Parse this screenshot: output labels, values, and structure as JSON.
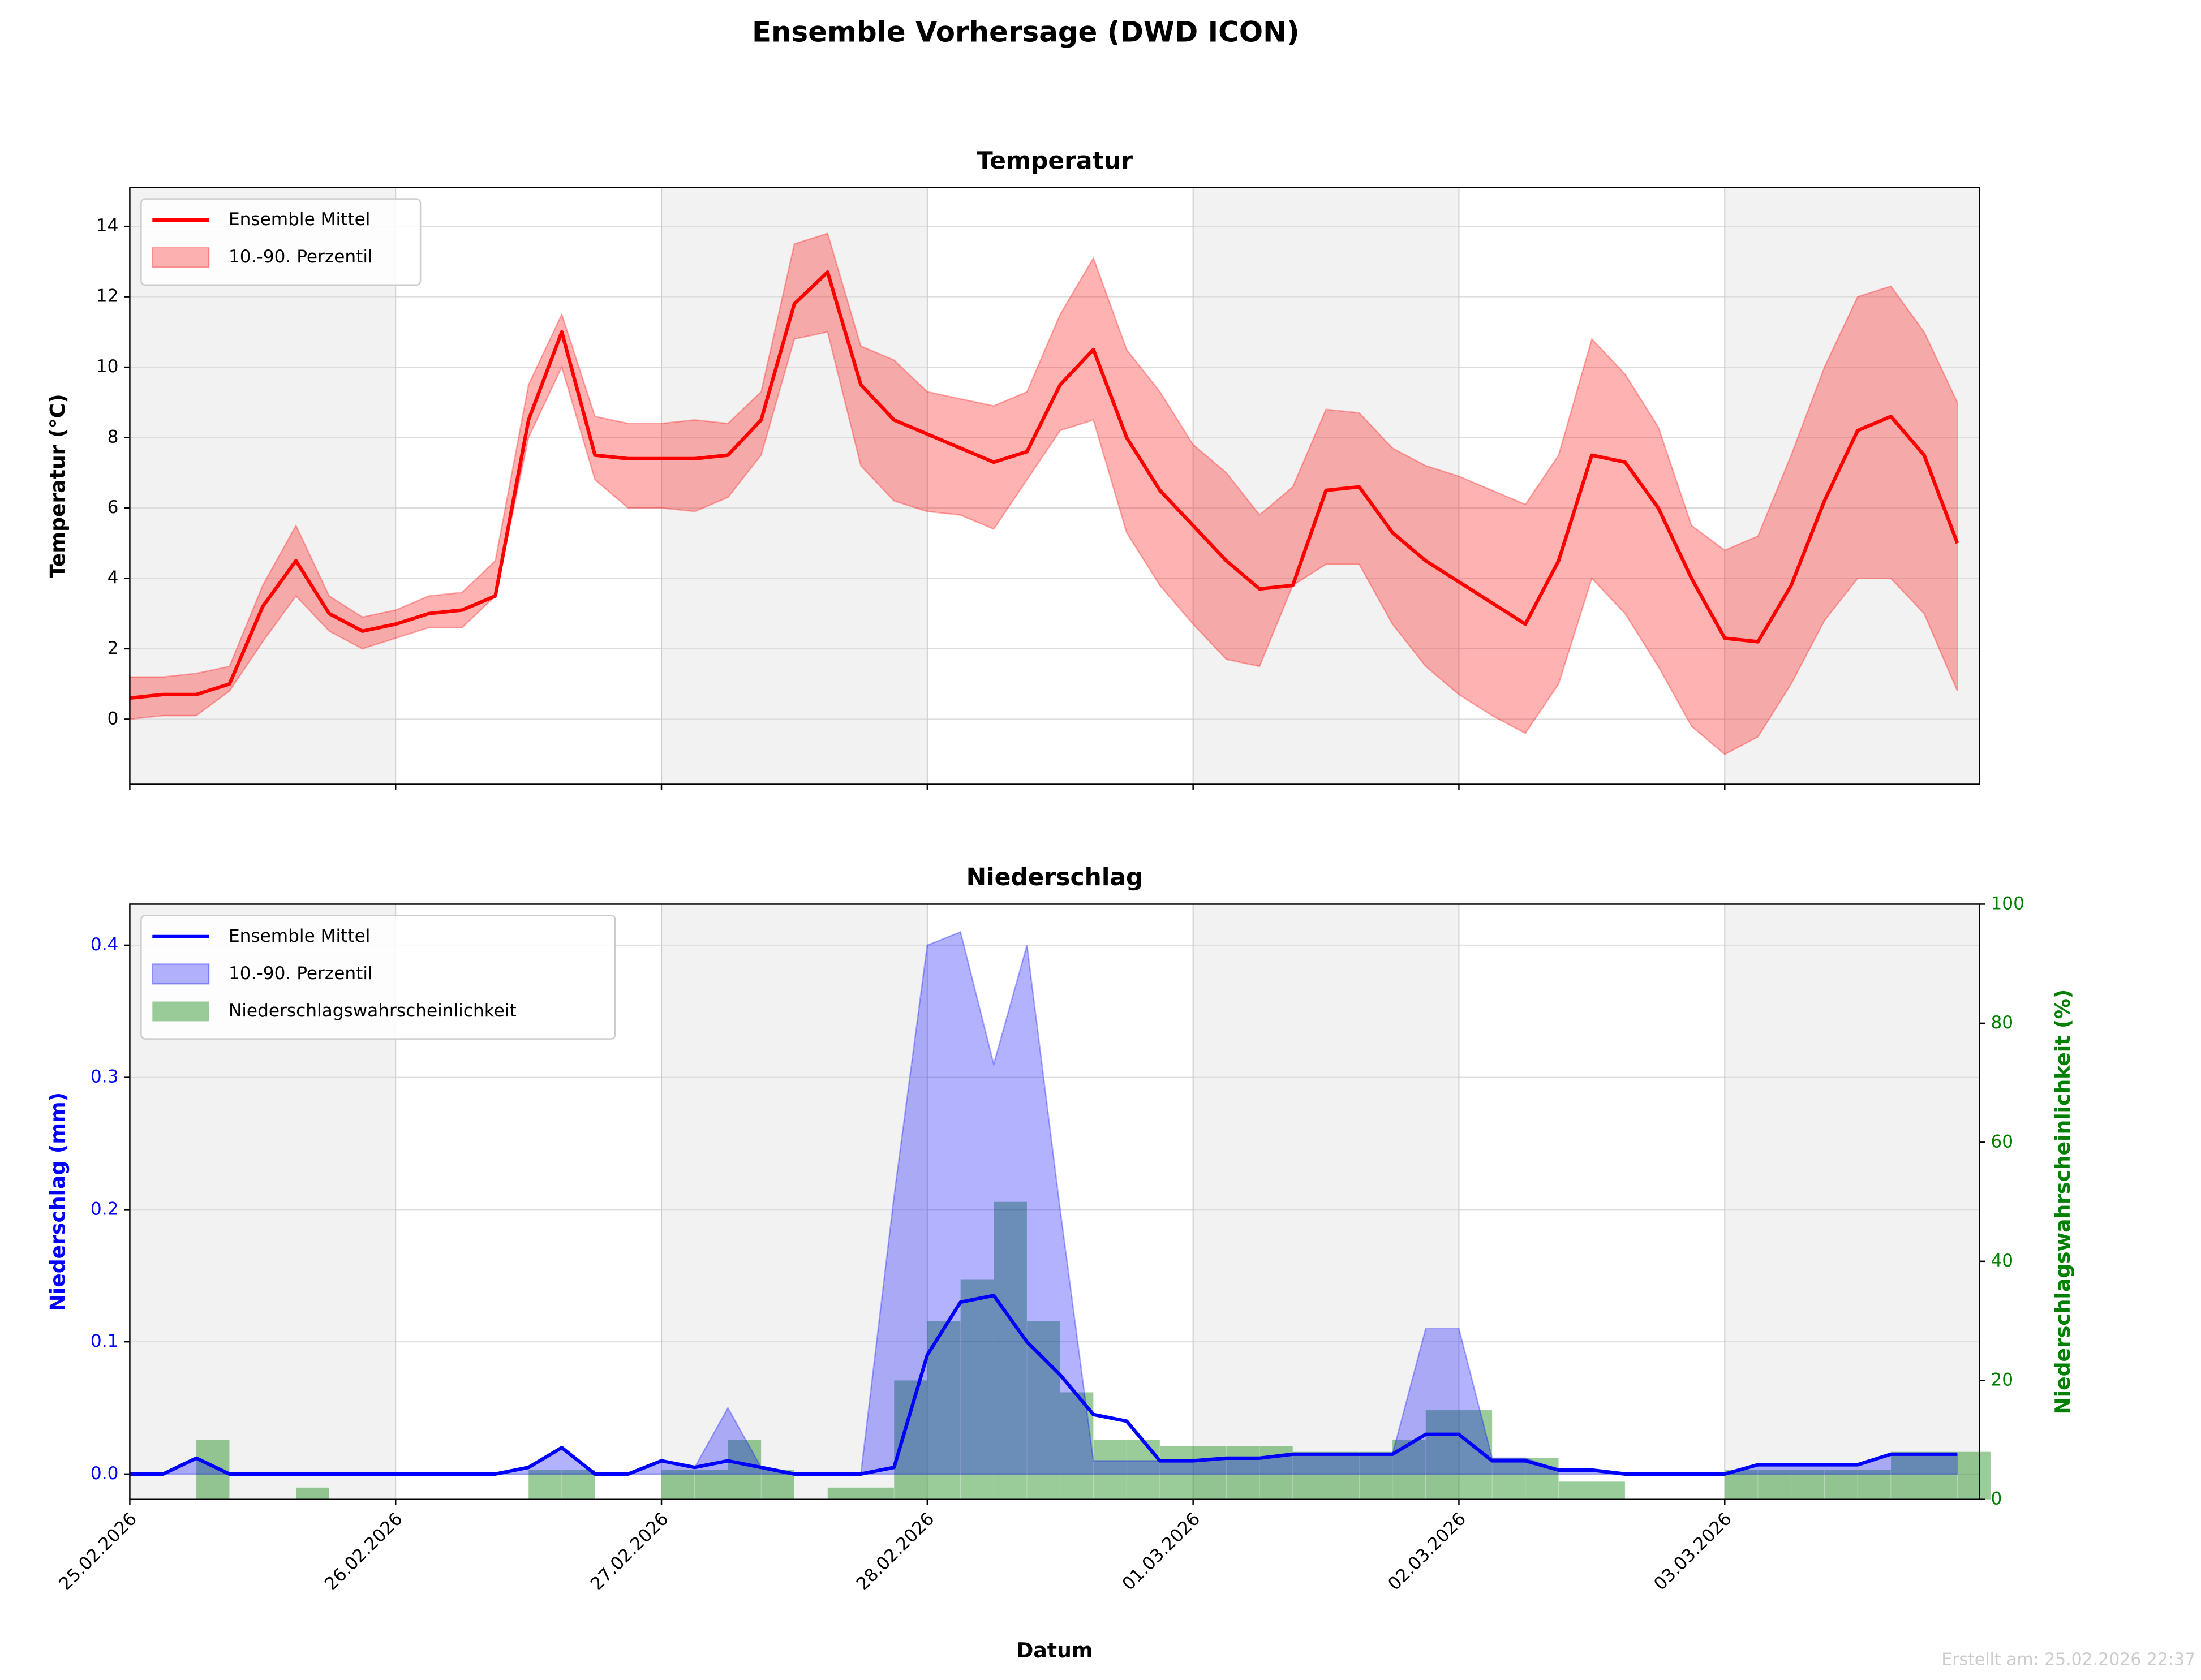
{
  "title": "Ensemble Vorhersage (DWD ICON)",
  "footer": "Erstellt am: 25.02.2026 22:37",
  "chart_data": [
    {
      "type": "line",
      "title": "Temperatur",
      "ylabel": "Temperatur (°C)",
      "x": [
        0,
        3,
        6,
        9,
        12,
        15,
        18,
        21,
        24,
        27,
        30,
        33,
        36,
        39,
        42,
        45,
        48,
        51,
        54,
        57,
        60,
        63,
        66,
        69,
        72,
        75,
        78,
        81,
        84,
        87,
        90,
        93,
        96,
        99,
        102,
        105,
        108,
        111,
        114,
        117,
        120,
        123,
        126,
        129,
        132,
        135,
        138,
        141,
        144,
        147,
        150,
        153,
        156,
        159,
        162,
        165
      ],
      "xlim": [
        0,
        167
      ],
      "xticks": [
        0,
        24,
        48,
        72,
        96,
        120,
        144
      ],
      "ylim": [
        -1.85,
        15.1
      ],
      "yticks": [
        0,
        2,
        4,
        6,
        8,
        10,
        12,
        14
      ],
      "grid": true,
      "legend": "upper left",
      "series": [
        {
          "name": "Ensemble Mittel",
          "color": "#ff0000",
          "values": [
            0.6,
            0.7,
            0.7,
            1.0,
            3.2,
            4.5,
            3.0,
            2.5,
            2.7,
            3.0,
            3.1,
            3.5,
            8.5,
            11.0,
            7.5,
            7.4,
            7.4,
            7.4,
            7.5,
            8.5,
            11.8,
            12.7,
            9.5,
            8.5,
            8.1,
            7.7,
            7.3,
            7.6,
            9.5,
            10.5,
            8.0,
            6.5,
            5.5,
            4.5,
            3.7,
            3.8,
            6.5,
            6.6,
            5.3,
            4.5,
            3.9,
            3.3,
            2.7,
            4.5,
            7.5,
            7.3,
            6.0,
            4.0,
            2.3,
            2.2,
            3.8,
            6.2,
            8.2,
            8.6,
            7.5,
            5.0
          ]
        },
        {
          "name": "10.-90. Perzentil",
          "color": "#ff0000",
          "low": [
            0.0,
            0.1,
            0.1,
            0.8,
            2.2,
            3.5,
            2.5,
            2.0,
            2.3,
            2.6,
            2.6,
            3.5,
            8.0,
            10.0,
            6.8,
            6.0,
            6.0,
            5.9,
            6.3,
            7.5,
            10.8,
            11.0,
            7.2,
            6.2,
            5.9,
            5.8,
            5.4,
            6.8,
            8.2,
            8.5,
            5.3,
            3.8,
            2.7,
            1.7,
            1.5,
            3.8,
            4.4,
            4.4,
            2.7,
            1.5,
            0.7,
            0.1,
            -0.4,
            1.0,
            4.0,
            3.0,
            1.5,
            -0.2,
            -1.0,
            -0.5,
            1.0,
            2.8,
            4.0,
            4.0,
            3.0,
            0.8
          ],
          "high": [
            1.2,
            1.2,
            1.3,
            1.5,
            3.8,
            5.5,
            3.5,
            2.9,
            3.1,
            3.5,
            3.6,
            4.5,
            9.5,
            11.5,
            8.6,
            8.4,
            8.4,
            8.5,
            8.4,
            9.3,
            13.5,
            13.8,
            10.6,
            10.2,
            9.3,
            9.1,
            8.9,
            9.3,
            11.5,
            13.1,
            10.5,
            9.3,
            7.8,
            7.0,
            5.8,
            6.6,
            8.8,
            8.7,
            7.7,
            7.2,
            6.9,
            6.5,
            6.1,
            7.5,
            10.8,
            9.8,
            8.3,
            5.5,
            4.8,
            5.2,
            7.5,
            10.0,
            12.0,
            12.3,
            11.0,
            9.0
          ]
        }
      ]
    },
    {
      "type": "line",
      "title": "Niederschlag",
      "xlabel": "Datum",
      "ylabel": "Niederschlag (mm)",
      "y2label": "Niederschlagswahrscheinlichkeit (%)",
      "x": [
        0,
        3,
        6,
        9,
        12,
        15,
        18,
        21,
        24,
        27,
        30,
        33,
        36,
        39,
        42,
        45,
        48,
        51,
        54,
        57,
        60,
        63,
        66,
        69,
        72,
        75,
        78,
        81,
        84,
        87,
        90,
        93,
        96,
        99,
        102,
        105,
        108,
        111,
        114,
        117,
        120,
        123,
        126,
        129,
        132,
        135,
        138,
        141,
        144,
        147,
        150,
        153,
        156,
        159,
        162,
        165
      ],
      "xlim": [
        0,
        167
      ],
      "xticks": [
        {
          "value": 0,
          "label": "25.02.2026"
        },
        {
          "value": 24,
          "label": "26.02.2026"
        },
        {
          "value": 48,
          "label": "27.02.2026"
        },
        {
          "value": 72,
          "label": "28.02.2026"
        },
        {
          "value": 96,
          "label": "01.03.2026"
        },
        {
          "value": 120,
          "label": "02.03.2026"
        },
        {
          "value": 144,
          "label": "03.03.2026"
        }
      ],
      "ylim": [
        -0.0192,
        0.431
      ],
      "yticks": [
        {
          "value": 0,
          "label": "0.0"
        },
        0.1,
        0.2,
        0.3,
        0.4
      ],
      "y2lim": [
        0,
        100
      ],
      "y2ticks": [
        0,
        20,
        40,
        60,
        80,
        100
      ],
      "grid": true,
      "legend": "upper left",
      "series": [
        {
          "name": "Ensemble Mittel",
          "color": "#0000ff",
          "values": [
            0,
            0,
            0.012,
            0,
            0,
            0,
            0,
            0,
            0,
            0,
            0,
            0,
            0.005,
            0.02,
            0,
            0,
            0.01,
            0.005,
            0.01,
            0.005,
            0,
            0,
            0,
            0.005,
            0.09,
            0.13,
            0.135,
            0.1,
            0.075,
            0.045,
            0.04,
            0.01,
            0.01,
            0.012,
            0.012,
            0.015,
            0.015,
            0.015,
            0.015,
            0.03,
            0.03,
            0.01,
            0.01,
            0.003,
            0.003,
            0,
            0,
            0,
            0,
            0.007,
            0.007,
            0.007,
            0.007,
            0.015,
            0.015,
            0.015
          ]
        },
        {
          "name": "10.-90. Perzentil",
          "color": "#0000ff",
          "low": [
            0,
            0,
            0,
            0,
            0,
            0,
            0,
            0,
            0,
            0,
            0,
            0,
            0,
            0,
            0,
            0,
            0,
            0,
            0,
            0,
            0,
            0,
            0,
            0,
            0,
            0,
            0,
            0,
            0,
            0,
            0,
            0,
            0,
            0,
            0,
            0,
            0,
            0,
            0,
            0,
            0,
            0,
            0,
            0,
            0,
            0,
            0,
            0,
            0,
            0,
            0,
            0,
            0,
            0,
            0,
            0
          ],
          "high": [
            0,
            0,
            0.012,
            0,
            0,
            0,
            0,
            0,
            0,
            0,
            0,
            0,
            0.005,
            0.02,
            0,
            0,
            0.01,
            0.005,
            0.05,
            0.005,
            0,
            0,
            0,
            0.21,
            0.4,
            0.41,
            0.31,
            0.4,
            0.2,
            0.01,
            0.01,
            0.01,
            0.01,
            0.012,
            0.012,
            0.015,
            0.015,
            0.015,
            0.015,
            0.11,
            0.11,
            0.012,
            0.012,
            0.003,
            0.003,
            0,
            0,
            0,
            0,
            0.007,
            0.007,
            0.007,
            0.007,
            0.015,
            0.015,
            0.015
          ]
        },
        {
          "name": "Niederschlagswahrscheinlichkeit",
          "color": "#008000",
          "axis": "y2",
          "values": [
            0,
            0,
            10,
            0,
            0,
            2,
            0,
            0,
            0,
            0,
            0,
            0,
            5,
            5,
            0,
            0,
            5,
            5,
            10,
            5,
            0,
            2,
            2,
            20,
            30,
            37,
            50,
            30,
            18,
            10,
            10,
            9,
            9,
            9,
            9,
            8,
            8,
            8,
            10,
            15,
            15,
            7,
            7,
            3,
            3,
            0,
            0,
            0,
            5,
            5,
            5,
            5,
            5,
            8,
            8,
            8
          ]
        }
      ]
    }
  ]
}
